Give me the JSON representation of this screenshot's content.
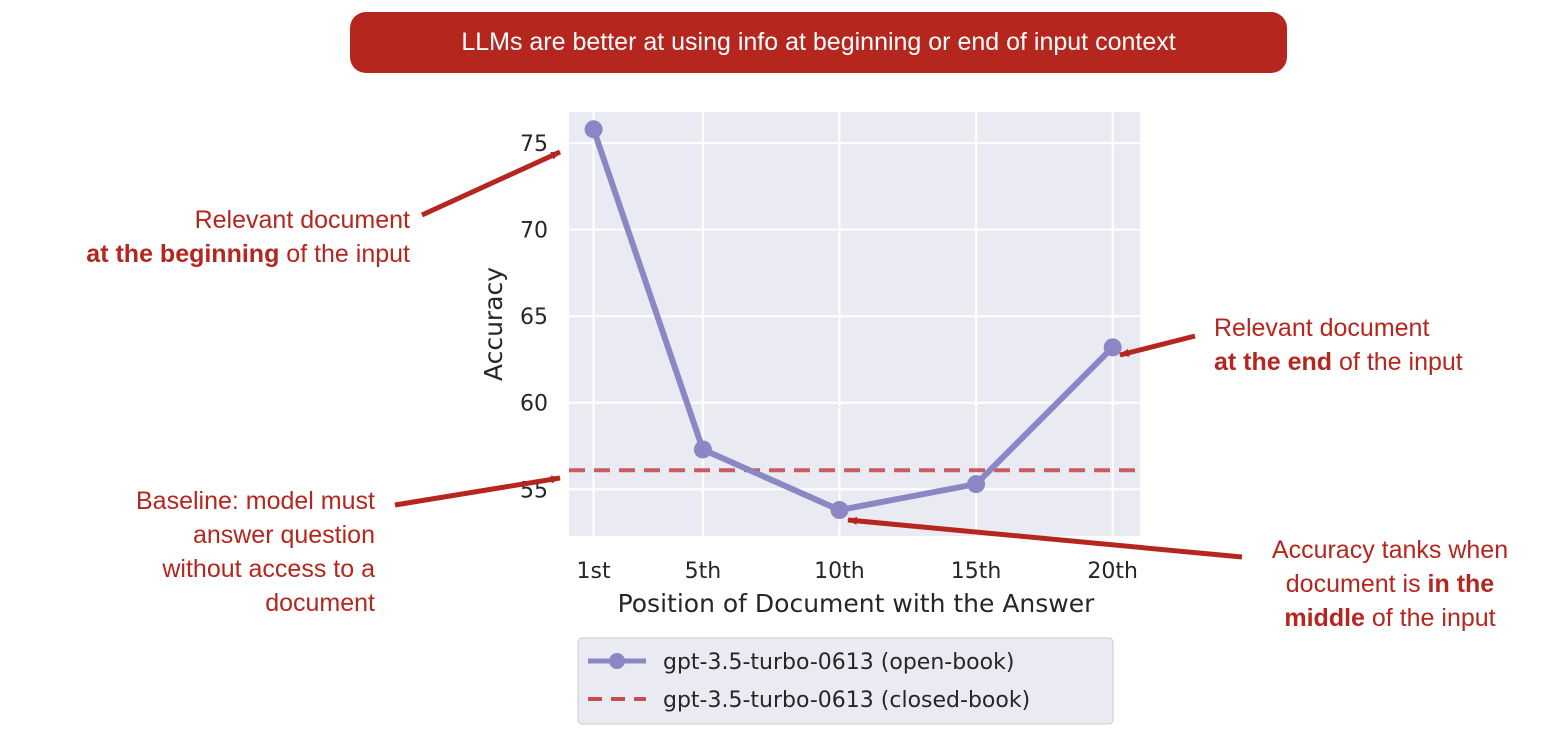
{
  "banner": {
    "text": "LLMs are better at using info at beginning or end of input context"
  },
  "annotations": {
    "beginning": {
      "line1": "Relevant document",
      "line2_bold": "at the beginning",
      "line2_rest": " of the input"
    },
    "end": {
      "line1": "Relevant document",
      "line2_bold": "at the end",
      "line2_rest": " of the input"
    },
    "baseline": {
      "line1": "Baseline: model must",
      "line2": "answer question",
      "line3": "without access to a",
      "line4": "document"
    },
    "middle": {
      "line1": "Accuracy tanks when",
      "line2_pre": "document is ",
      "line2_bold": "in the",
      "line3_bold": "middle",
      "line3_rest": " of the input"
    }
  },
  "colors": {
    "accent": "#b5261e",
    "series": "#8b86c4",
    "baseline": "#c44e52",
    "plot_bg": "#eaeaf2",
    "grid": "#ffffff"
  },
  "chart_data": {
    "type": "line",
    "title": "",
    "xlabel": "Position of Document with the Answer",
    "ylabel": "Accuracy",
    "categories": [
      "1st",
      "5th",
      "10th",
      "15th",
      "20th"
    ],
    "x": [
      1,
      5,
      10,
      15,
      20
    ],
    "xlim": [
      0.1,
      21
    ],
    "ylim": [
      52.3,
      76.8
    ],
    "yticks": [
      55,
      60,
      65,
      70,
      75
    ],
    "grid": true,
    "legend_position": "below",
    "series": [
      {
        "name": "gpt-3.5-turbo-0613 (open-book)",
        "style": "solid-markers",
        "values": [
          75.8,
          57.3,
          53.8,
          55.3,
          63.2
        ]
      },
      {
        "name": "gpt-3.5-turbo-0613 (closed-book)",
        "style": "dashed",
        "values": [
          56.1,
          56.1,
          56.1,
          56.1,
          56.1
        ]
      }
    ]
  }
}
